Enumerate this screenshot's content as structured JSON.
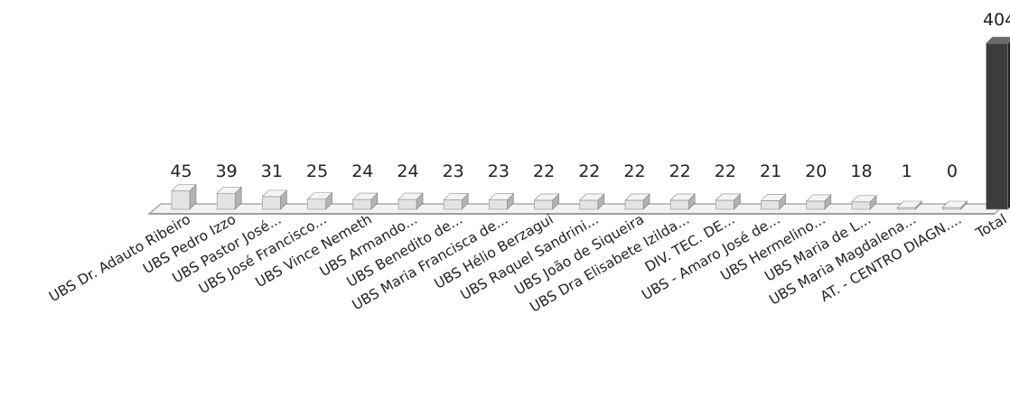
{
  "chart_data": {
    "type": "bar",
    "title": "",
    "xlabel": "",
    "ylabel": "",
    "grid": false,
    "legend": "none",
    "ylim": [
      0,
      404
    ],
    "categories": [
      "UBS Dr. Adauto Ribeiro",
      "UBS Pedro Izzo",
      "UBS Pastor José...",
      "UBS José Francisco...",
      "UBS Vince Nemeth",
      "UBS Armando...",
      "UBS Benedito de...",
      "UBS Maria Francisca de...",
      "UBS Hélio Berzagui",
      "UBS Raquel Sandrini...",
      "UBS João de Siqueira",
      "UBS Dra Elisabete Izilda...",
      "DIV. TEC. DE...",
      "UBS - Amaro José de...",
      "UBS Hermelino...",
      "UBS Maria de L...",
      "UBS Maria Magdalena...",
      "AT. - CENTRO DIAGN....",
      "Total"
    ],
    "values": [
      45,
      39,
      31,
      25,
      24,
      24,
      23,
      23,
      22,
      22,
      22,
      22,
      22,
      21,
      20,
      18,
      1,
      0,
      404
    ],
    "colors": {
      "bar_front": "#e3e3e3",
      "bar_side": "#b3b3b3",
      "bar_top": "#f4f4f4",
      "total_front": "#3c3c3c",
      "total_side": "#222222",
      "total_top": "#686868",
      "floor": "#f3f3f3",
      "floor_edge": "#9a9a9a"
    }
  }
}
